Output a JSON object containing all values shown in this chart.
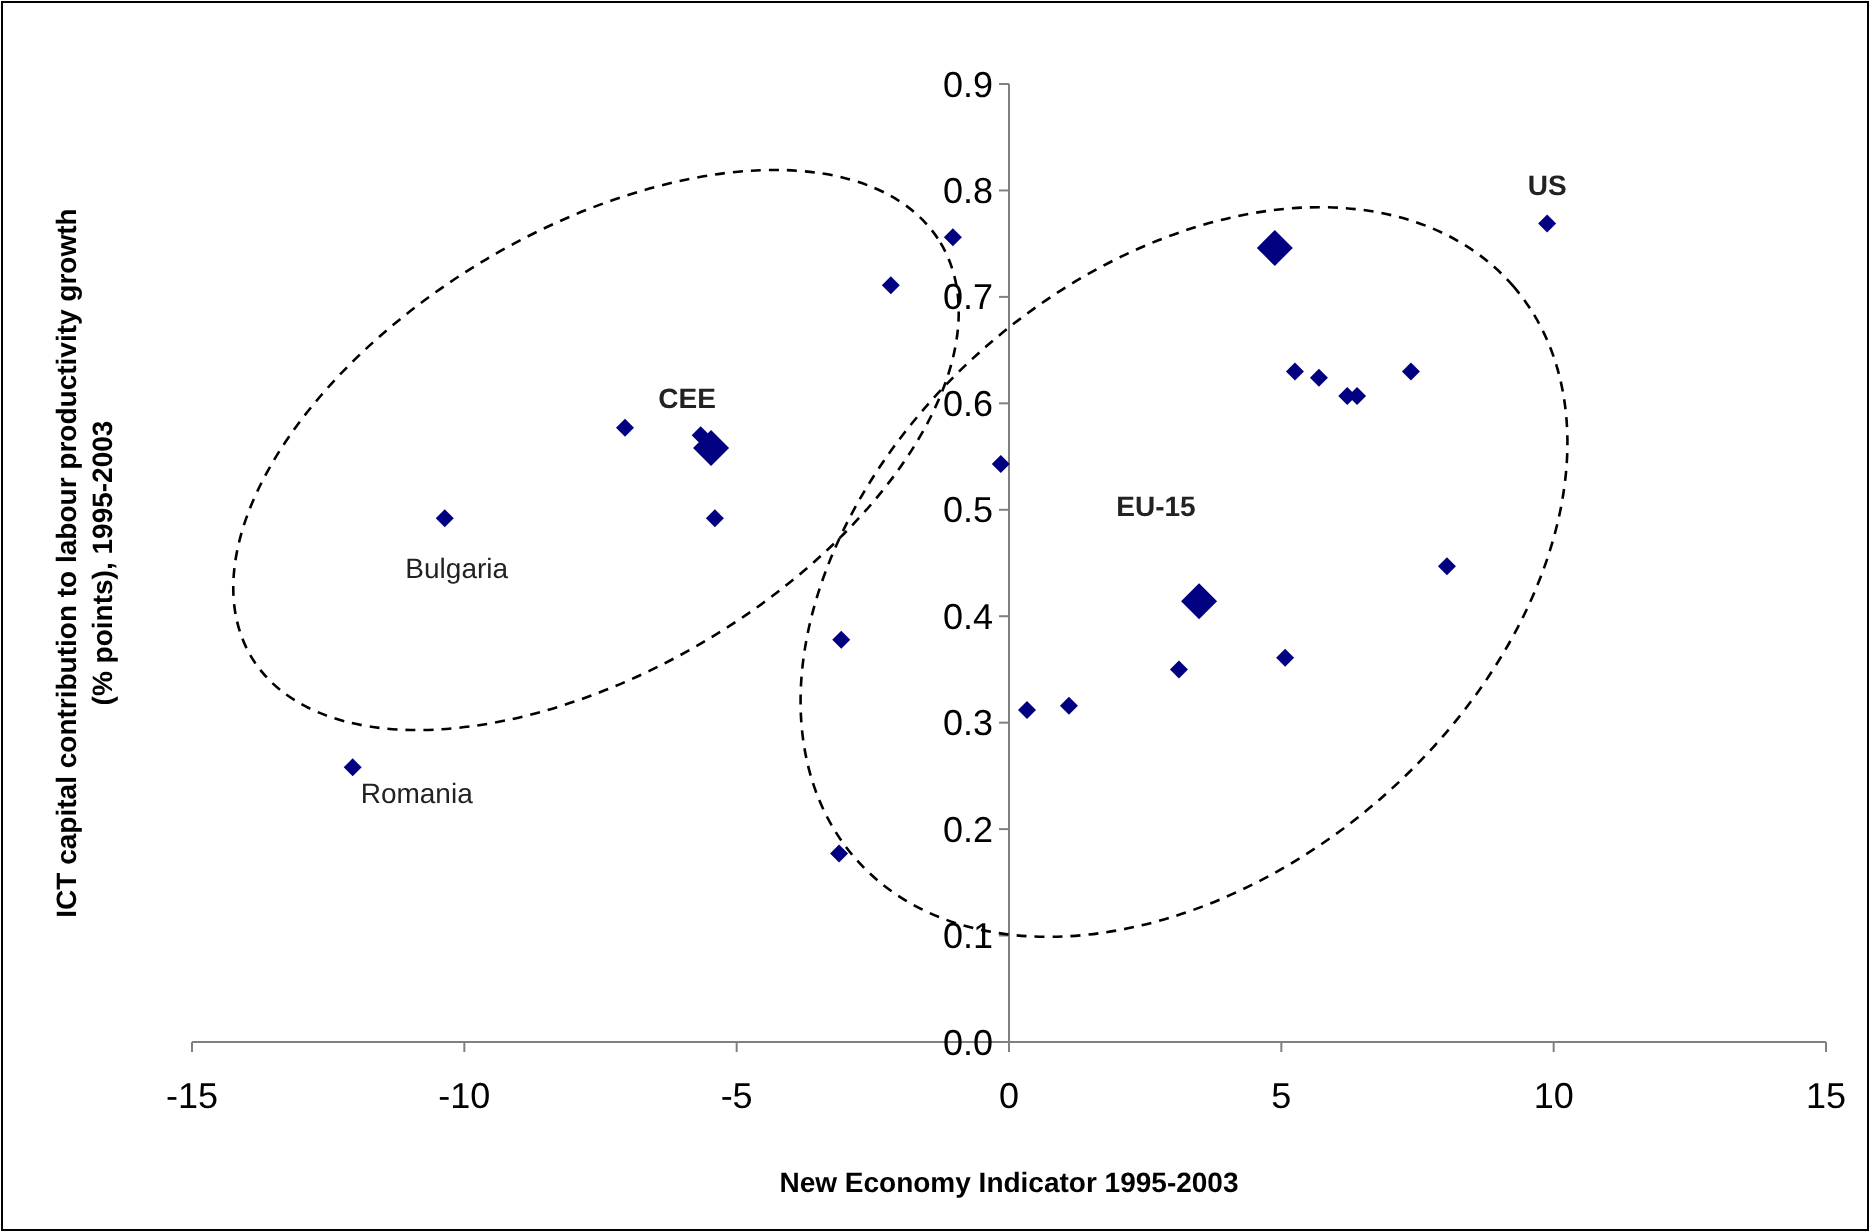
{
  "chart_data": {
    "type": "scatter",
    "xlabel": "New Economy Indicator 1995-2003",
    "ylabel": "ICT capital contribution to labour productivity growth (% points), 1995-2003",
    "marker": "diamond",
    "grid": false,
    "series": [
      {
        "color": "#000080",
        "x": [
          -12.05,
          -10.36,
          -7.05,
          -5.66,
          -5.4,
          -2.17,
          -1.03,
          -0.15,
          -3.08,
          -3.12,
          0.33,
          1.1,
          3.12,
          5.07,
          5.25,
          5.69,
          6.21,
          6.39,
          7.38,
          8.04,
          9.88
        ],
        "values": [
          0.258,
          0.492,
          0.577,
          0.57,
          0.492,
          0.711,
          0.756,
          0.543,
          0.378,
          0.177,
          0.312,
          0.316,
          0.35,
          0.361,
          0.63,
          0.624,
          0.607,
          0.607,
          0.63,
          0.447,
          0.769
        ]
      },
      {
        "color": "#000080",
        "x": [
          -5.47,
          3.49,
          4.88
        ],
        "values": [
          0.558,
          0.414,
          0.746
        ]
      }
    ],
    "xlim": [
      -15,
      15
    ],
    "xticks": [
      -15,
      -10,
      -5,
      0,
      5,
      10,
      15
    ],
    "ylim": [
      0,
      0.9
    ],
    "yticks": [
      {
        "value": 0,
        "label": "0.0"
      },
      0.1,
      0.2,
      0.3,
      0.4,
      0.5,
      0.6,
      0.7,
      0.8,
      0.9
    ],
    "annotations": [
      {
        "text": "US",
        "x": 9.88,
        "y": 0.769
      },
      "EU-15",
      {
        "text": "CEE",
        "x": -5.47,
        "y": 0.558
      },
      {
        "text": "Bulgaria",
        "x": -10.36,
        "y": 0.492
      },
      {
        "text": "Romania",
        "x": -12.05,
        "y": 0.258
      }
    ]
  }
}
